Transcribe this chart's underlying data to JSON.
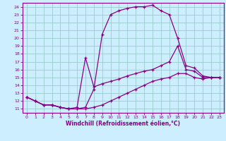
{
  "xlabel": "Windchill (Refroidissement éolien,°C)",
  "bg_color": "#cceeff",
  "line_color": "#880088",
  "grid_color": "#99cccc",
  "xlim": [
    -0.5,
    23.5
  ],
  "ylim": [
    10.5,
    24.5
  ],
  "xticks": [
    0,
    1,
    2,
    3,
    4,
    5,
    6,
    7,
    8,
    9,
    10,
    11,
    12,
    13,
    14,
    15,
    16,
    17,
    18,
    19,
    20,
    21,
    22,
    23
  ],
  "yticks": [
    11,
    12,
    13,
    14,
    15,
    16,
    17,
    18,
    19,
    20,
    21,
    22,
    23,
    24
  ],
  "line1_x": [
    0,
    1,
    2,
    3,
    4,
    5,
    6,
    7,
    8,
    9,
    10,
    11,
    12,
    13,
    14,
    15,
    16,
    17,
    18,
    19,
    20,
    21,
    22,
    23
  ],
  "line1_y": [
    12.5,
    12.0,
    11.5,
    11.5,
    11.2,
    11.0,
    11.0,
    11.2,
    13.5,
    20.5,
    23.0,
    23.5,
    23.8,
    24.0,
    24.0,
    24.2,
    23.5,
    23.0,
    20.0,
    16.5,
    16.2,
    15.2,
    15.0,
    15.0
  ],
  "line2_x": [
    0,
    1,
    2,
    3,
    4,
    5,
    6,
    7,
    8,
    9,
    10,
    11,
    12,
    13,
    14,
    15,
    16,
    17,
    18,
    19,
    20,
    21,
    22,
    23
  ],
  "line2_y": [
    12.5,
    12.0,
    11.5,
    11.5,
    11.2,
    11.0,
    11.2,
    17.5,
    13.8,
    14.2,
    14.5,
    14.8,
    15.2,
    15.5,
    15.8,
    16.0,
    16.5,
    17.0,
    19.0,
    16.0,
    15.8,
    15.0,
    15.0,
    15.0
  ],
  "line3_x": [
    0,
    1,
    2,
    3,
    4,
    5,
    6,
    7,
    8,
    9,
    10,
    11,
    12,
    13,
    14,
    15,
    16,
    17,
    18,
    19,
    20,
    21,
    22,
    23
  ],
  "line3_y": [
    12.5,
    12.0,
    11.5,
    11.5,
    11.2,
    11.0,
    11.0,
    11.0,
    11.2,
    11.5,
    12.0,
    12.5,
    13.0,
    13.5,
    14.0,
    14.5,
    14.8,
    15.0,
    15.5,
    15.5,
    15.0,
    14.8,
    15.0,
    15.0
  ]
}
